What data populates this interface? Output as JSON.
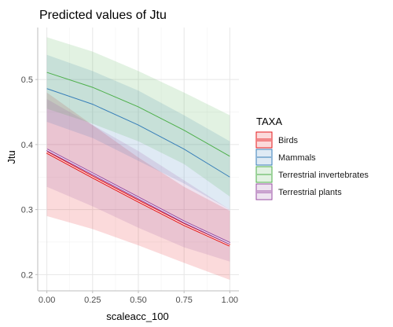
{
  "chart_data": {
    "type": "line",
    "title": "Predicted values of Jtu",
    "xlabel": "scaleacc_100",
    "ylabel": "Jtu",
    "xlim": [
      -0.05,
      1.05
    ],
    "ylim": [
      0.175,
      0.58
    ],
    "x_ticks": [
      0.0,
      0.25,
      0.5,
      0.75,
      1.0
    ],
    "x_tick_labels": [
      "0.00",
      "0.25",
      "0.50",
      "0.75",
      "1.00"
    ],
    "y_ticks": [
      0.2,
      0.3,
      0.4,
      0.5
    ],
    "y_tick_labels": [
      "0.2",
      "0.3",
      "0.4",
      "0.5"
    ],
    "grid": true,
    "legend_position": "right",
    "legend_title": "TAXA",
    "x": [
      0.0,
      0.25,
      0.5,
      0.75,
      1.0
    ],
    "series": [
      {
        "name": "Birds",
        "color": "#e41a1c",
        "style": "double",
        "values": [
          0.388,
          0.35,
          0.313,
          0.277,
          0.245
        ],
        "lower": [
          0.29,
          0.27,
          0.245,
          0.218,
          0.192
        ],
        "upper": [
          0.48,
          0.43,
          0.38,
          0.335,
          0.298
        ]
      },
      {
        "name": "Mammals",
        "color": "#377eb8",
        "style": "single",
        "values": [
          0.486,
          0.462,
          0.43,
          0.393,
          0.35
        ],
        "lower": [
          0.435,
          0.41,
          0.375,
          0.34,
          0.3
        ],
        "upper": [
          0.538,
          0.513,
          0.483,
          0.445,
          0.405
        ]
      },
      {
        "name": "Terrestrial invertebrates",
        "color": "#4daf4a",
        "style": "single",
        "values": [
          0.511,
          0.488,
          0.458,
          0.422,
          0.382
        ],
        "lower": [
          0.455,
          0.432,
          0.405,
          0.37,
          0.32
        ],
        "upper": [
          0.565,
          0.543,
          0.513,
          0.48,
          0.445
        ]
      },
      {
        "name": "Terrestrial plants",
        "color": "#984ea3",
        "style": "double",
        "values": [
          0.392,
          0.355,
          0.318,
          0.281,
          0.248
        ],
        "lower": [
          0.335,
          0.305,
          0.272,
          0.242,
          0.22
        ],
        "upper": [
          0.47,
          0.43,
          0.39,
          0.345,
          0.3
        ]
      }
    ]
  }
}
